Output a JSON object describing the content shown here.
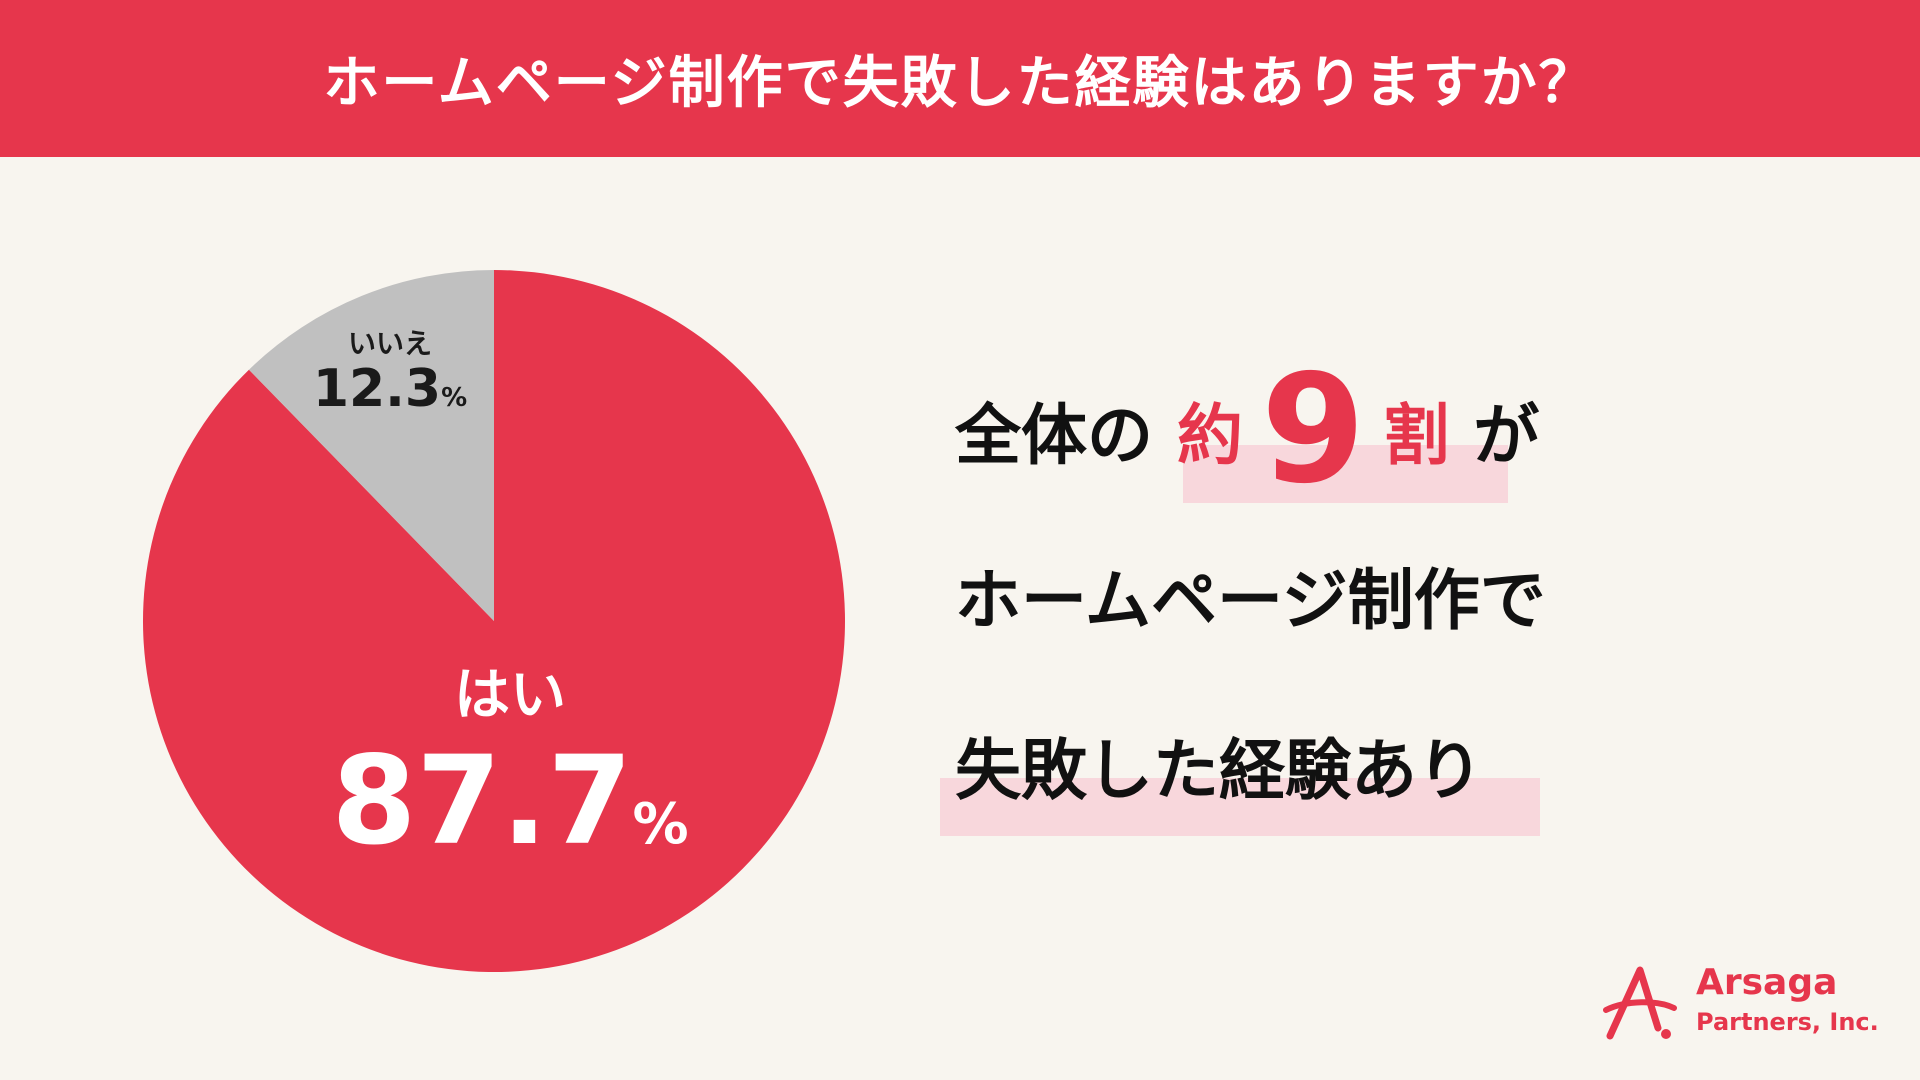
{
  "header": {
    "title": "ホームページ制作で失敗した経験はありますか？"
  },
  "chart_data": {
    "type": "pie",
    "title": "ホームページ制作で失敗した経験はありますか？",
    "slices": [
      {
        "label": "はい",
        "value": 87.7,
        "display": "87.7",
        "unit": "%",
        "color": "#e6364c"
      },
      {
        "label": "いいえ",
        "value": 12.3,
        "display": "12.3",
        "unit": "%",
        "color": "#c0c0c0"
      }
    ]
  },
  "summary": {
    "line1_pre": "全体の",
    "line1_accent_a": "約",
    "line1_accent_b": "9",
    "line1_accent_c": "割",
    "line1_post": "が",
    "line2": "ホームページ制作で",
    "line3": "失敗した経験あり"
  },
  "brand": {
    "name": "Arsaga",
    "sub": "Partners, Inc.",
    "color": "#e6364c"
  }
}
